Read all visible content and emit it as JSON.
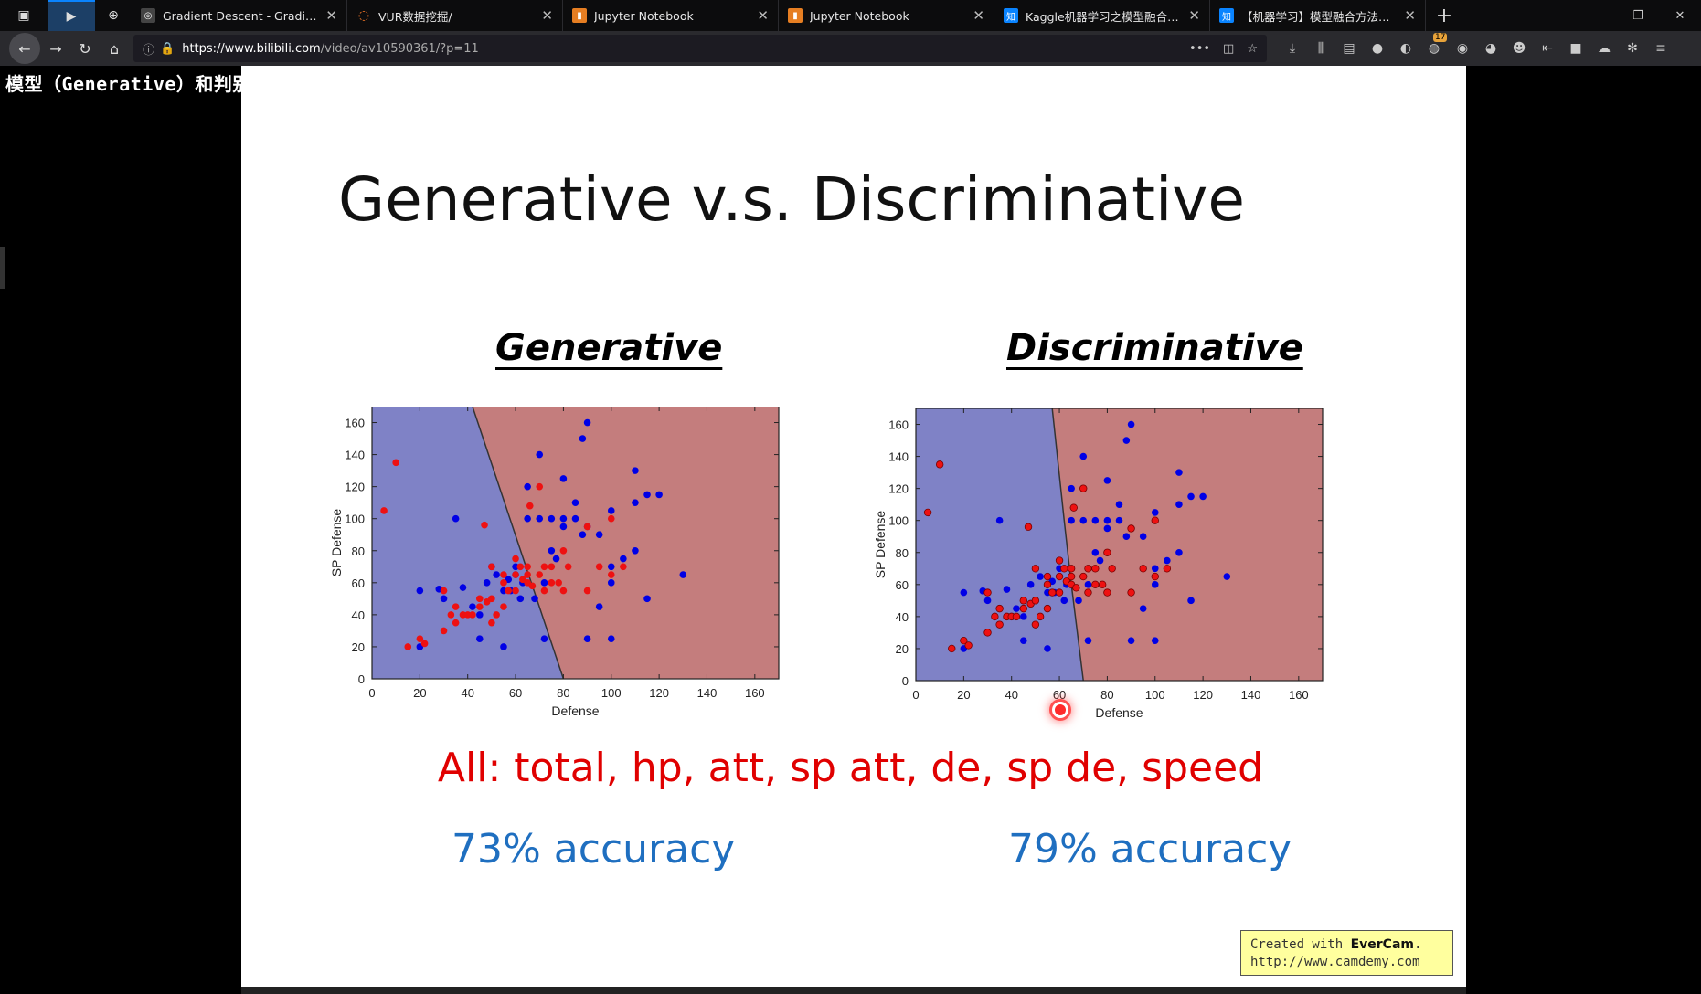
{
  "window": {
    "tabs": [
      {
        "title": "Gradient Descent - Gradient Descen",
        "favicon": "globe-icon"
      },
      {
        "title": "VUR数据挖掘/",
        "favicon": "jupyter-icon"
      },
      {
        "title": "Jupyter Notebook",
        "favicon": "notebook-icon"
      },
      {
        "title": "Jupyter Notebook",
        "favicon": "notebook-icon"
      },
      {
        "title": "Kaggle机器学习之模型融合（st",
        "favicon": "zhihu-icon"
      },
      {
        "title": "【机器学习】模型融合方法概述",
        "favicon": "zhihu-icon"
      }
    ],
    "url_host": "https://www.bilibili.com",
    "url_path": "/video/av10590361/?p=11",
    "zhihu_icon_text": "知"
  },
  "video": {
    "subtitle": "模型（Generative）和判别模型（Discriminative）",
    "slide_title": "Generative v.s. Discriminative",
    "features_text": "All: total, hp, att, sp att, de, sp de, speed",
    "watermark_line1_prefix": "Created with ",
    "watermark_brand": "EverCam",
    "watermark_line1_suffix": ".",
    "watermark_line2": "http://www.camdemy.com"
  },
  "colors": {
    "region_blue": "#7f82c6",
    "region_red": "#c47d7d",
    "point_blue": "#0000e6",
    "point_red": "#ee1111",
    "accuracy": "#1f6fc0",
    "features": "#e00000"
  },
  "chart_data": [
    {
      "type": "scatter",
      "title": "Generative",
      "xlabel": "Defense",
      "ylabel": "SP Defense",
      "xlim": [
        0,
        170
      ],
      "ylim": [
        0,
        170
      ],
      "xticks": [
        0,
        20,
        40,
        60,
        80,
        100,
        120,
        140,
        160
      ],
      "yticks": [
        0,
        20,
        40,
        60,
        80,
        100,
        120,
        140,
        160
      ],
      "boundary": [
        [
          42,
          170
        ],
        [
          80,
          0
        ]
      ],
      "accuracy_text": "73% accuracy",
      "series": [
        {
          "color": "blue",
          "points": [
            [
              20,
              55
            ],
            [
              20,
              20
            ],
            [
              28,
              56
            ],
            [
              30,
              50
            ],
            [
              35,
              100
            ],
            [
              38,
              57
            ],
            [
              42,
              45
            ],
            [
              45,
              40
            ],
            [
              45,
              25
            ],
            [
              48,
              60
            ],
            [
              50,
              70
            ],
            [
              52,
              65
            ],
            [
              55,
              55
            ],
            [
              55,
              20
            ],
            [
              57,
              62
            ],
            [
              58,
              55
            ],
            [
              60,
              70
            ],
            [
              60,
              65
            ],
            [
              62,
              50
            ],
            [
              63,
              60
            ],
            [
              65,
              120
            ],
            [
              65,
              100
            ],
            [
              68,
              50
            ],
            [
              70,
              140
            ],
            [
              70,
              100
            ],
            [
              72,
              25
            ],
            [
              72,
              60
            ],
            [
              75,
              100
            ],
            [
              75,
              80
            ],
            [
              77,
              75
            ],
            [
              80,
              100
            ],
            [
              80,
              95
            ],
            [
              80,
              125
            ],
            [
              85,
              110
            ],
            [
              85,
              100
            ],
            [
              88,
              90
            ],
            [
              88,
              150
            ],
            [
              90,
              160
            ],
            [
              90,
              25
            ],
            [
              90,
              95
            ],
            [
              95,
              90
            ],
            [
              95,
              45
            ],
            [
              100,
              105
            ],
            [
              100,
              25
            ],
            [
              100,
              70
            ],
            [
              100,
              60
            ],
            [
              105,
              75
            ],
            [
              110,
              80
            ],
            [
              110,
              130
            ],
            [
              110,
              110
            ],
            [
              115,
              115
            ],
            [
              115,
              50
            ],
            [
              120,
              115
            ],
            [
              130,
              65
            ]
          ]
        },
        {
          "color": "red",
          "points": [
            [
              5,
              105
            ],
            [
              10,
              135
            ],
            [
              15,
              20
            ],
            [
              20,
              25
            ],
            [
              22,
              22
            ],
            [
              30,
              30
            ],
            [
              30,
              55
            ],
            [
              33,
              40
            ],
            [
              35,
              45
            ],
            [
              35,
              35
            ],
            [
              38,
              40
            ],
            [
              40,
              40
            ],
            [
              42,
              40
            ],
            [
              45,
              45
            ],
            [
              45,
              50
            ],
            [
              48,
              48
            ],
            [
              50,
              50
            ],
            [
              50,
              70
            ],
            [
              50,
              35
            ],
            [
              52,
              40
            ],
            [
              55,
              65
            ],
            [
              55,
              60
            ],
            [
              55,
              45
            ],
            [
              57,
              55
            ],
            [
              60,
              75
            ],
            [
              60,
              55
            ],
            [
              60,
              65
            ],
            [
              62,
              70
            ],
            [
              63,
              62
            ],
            [
              65,
              60
            ],
            [
              65,
              70
            ],
            [
              65,
              65
            ],
            [
              66,
              108
            ],
            [
              67,
              58
            ],
            [
              70,
              120
            ],
            [
              70,
              65
            ],
            [
              72,
              55
            ],
            [
              72,
              70
            ],
            [
              75,
              70
            ],
            [
              75,
              60
            ],
            [
              78,
              60
            ],
            [
              80,
              55
            ],
            [
              80,
              80
            ],
            [
              82,
              70
            ],
            [
              90,
              55
            ],
            [
              90,
              95
            ],
            [
              95,
              70
            ],
            [
              100,
              100
            ],
            [
              100,
              65
            ],
            [
              105,
              70
            ],
            [
              47,
              96
            ]
          ]
        }
      ]
    },
    {
      "type": "scatter",
      "title": "Discriminative",
      "xlabel": "Defense",
      "ylabel": "SP Defense",
      "xlim": [
        0,
        170
      ],
      "ylim": [
        0,
        170
      ],
      "xticks": [
        0,
        20,
        40,
        60,
        80,
        100,
        120,
        140,
        160
      ],
      "yticks": [
        0,
        20,
        40,
        60,
        80,
        100,
        120,
        140,
        160
      ],
      "boundary": [
        [
          57,
          170
        ],
        [
          62,
          100
        ],
        [
          65,
          60
        ],
        [
          70,
          0
        ]
      ],
      "accuracy_text": "79% accuracy",
      "series": [
        {
          "color": "blue",
          "points": [
            [
              20,
              55
            ],
            [
              20,
              20
            ],
            [
              28,
              56
            ],
            [
              30,
              50
            ],
            [
              35,
              100
            ],
            [
              38,
              57
            ],
            [
              42,
              45
            ],
            [
              45,
              40
            ],
            [
              45,
              25
            ],
            [
              48,
              60
            ],
            [
              50,
              70
            ],
            [
              52,
              65
            ],
            [
              55,
              55
            ],
            [
              55,
              20
            ],
            [
              57,
              62
            ],
            [
              58,
              55
            ],
            [
              60,
              70
            ],
            [
              60,
              65
            ],
            [
              62,
              50
            ],
            [
              63,
              60
            ],
            [
              65,
              120
            ],
            [
              65,
              100
            ],
            [
              68,
              50
            ],
            [
              70,
              140
            ],
            [
              70,
              100
            ],
            [
              72,
              25
            ],
            [
              72,
              60
            ],
            [
              75,
              100
            ],
            [
              75,
              80
            ],
            [
              77,
              75
            ],
            [
              80,
              100
            ],
            [
              80,
              95
            ],
            [
              80,
              125
            ],
            [
              85,
              110
            ],
            [
              85,
              100
            ],
            [
              88,
              90
            ],
            [
              88,
              150
            ],
            [
              90,
              160
            ],
            [
              90,
              25
            ],
            [
              90,
              95
            ],
            [
              95,
              90
            ],
            [
              95,
              45
            ],
            [
              100,
              105
            ],
            [
              100,
              25
            ],
            [
              100,
              70
            ],
            [
              100,
              60
            ],
            [
              105,
              75
            ],
            [
              110,
              80
            ],
            [
              110,
              130
            ],
            [
              110,
              110
            ],
            [
              115,
              115
            ],
            [
              115,
              50
            ],
            [
              120,
              115
            ],
            [
              130,
              65
            ]
          ]
        },
        {
          "color": "red",
          "points": [
            [
              5,
              105
            ],
            [
              10,
              135
            ],
            [
              15,
              20
            ],
            [
              20,
              25
            ],
            [
              22,
              22
            ],
            [
              30,
              30
            ],
            [
              30,
              55
            ],
            [
              33,
              40
            ],
            [
              35,
              45
            ],
            [
              35,
              35
            ],
            [
              38,
              40
            ],
            [
              40,
              40
            ],
            [
              42,
              40
            ],
            [
              45,
              45
            ],
            [
              45,
              50
            ],
            [
              48,
              48
            ],
            [
              50,
              50
            ],
            [
              50,
              70
            ],
            [
              50,
              35
            ],
            [
              52,
              40
            ],
            [
              55,
              65
            ],
            [
              55,
              60
            ],
            [
              55,
              45
            ],
            [
              57,
              55
            ],
            [
              60,
              75
            ],
            [
              60,
              55
            ],
            [
              60,
              65
            ],
            [
              62,
              70
            ],
            [
              63,
              62
            ],
            [
              65,
              60
            ],
            [
              65,
              70
            ],
            [
              65,
              65
            ],
            [
              66,
              108
            ],
            [
              67,
              58
            ],
            [
              70,
              120
            ],
            [
              70,
              65
            ],
            [
              72,
              55
            ],
            [
              72,
              70
            ],
            [
              75,
              70
            ],
            [
              75,
              60
            ],
            [
              78,
              60
            ],
            [
              80,
              55
            ],
            [
              80,
              80
            ],
            [
              82,
              70
            ],
            [
              90,
              55
            ],
            [
              90,
              95
            ],
            [
              95,
              70
            ],
            [
              100,
              100
            ],
            [
              100,
              65
            ],
            [
              105,
              70
            ],
            [
              47,
              96
            ]
          ]
        }
      ]
    }
  ]
}
